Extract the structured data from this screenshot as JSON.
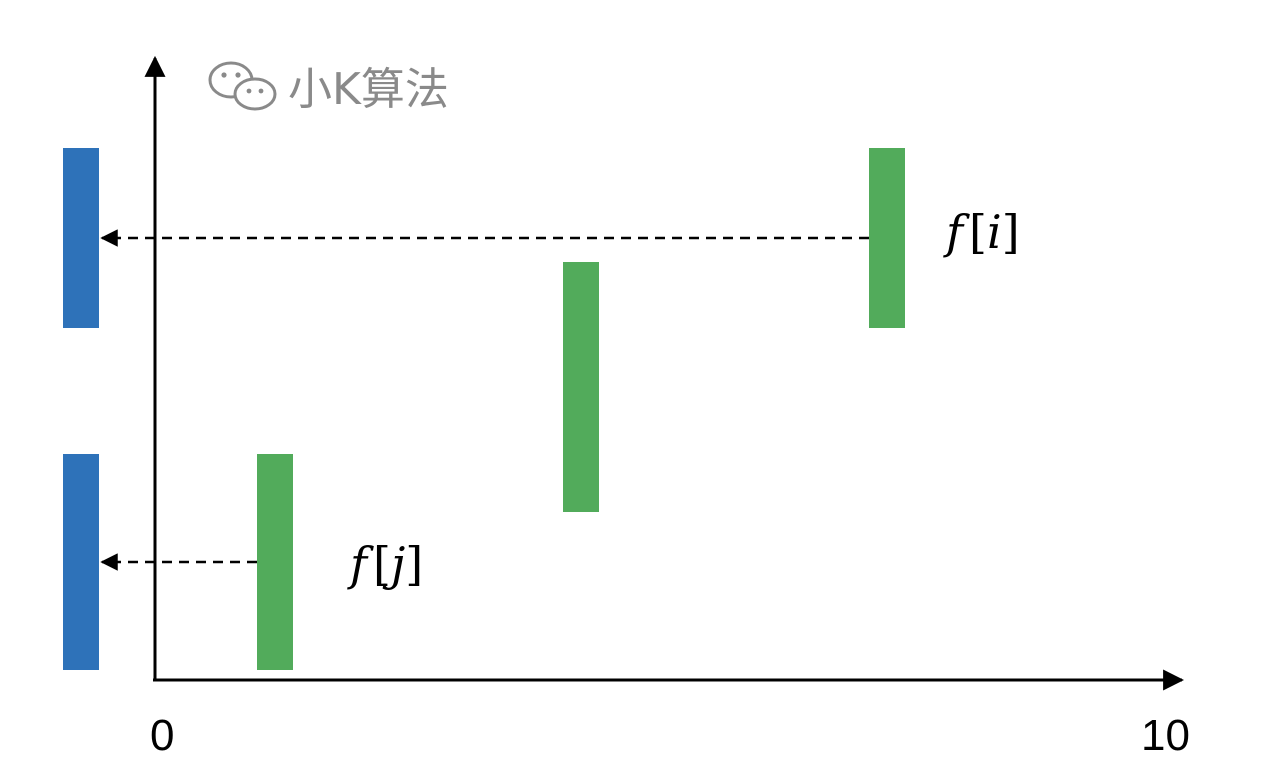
{
  "watermark": {
    "text": "小K算法",
    "icon": "wechat-icon",
    "color": "#8a8a8a"
  },
  "axis": {
    "x_min_label": "0",
    "x_max_label": "10",
    "color": "#000000"
  },
  "labels": {
    "f_i": {
      "func": "f",
      "open": "[",
      "var": "i",
      "close": "]"
    },
    "f_j": {
      "func": "f",
      "open": "[",
      "var": "j",
      "close": "]"
    }
  },
  "colors": {
    "blue_bar": "#2e72b9",
    "green_bar": "#52ab5b",
    "arrow": "#000000"
  }
}
